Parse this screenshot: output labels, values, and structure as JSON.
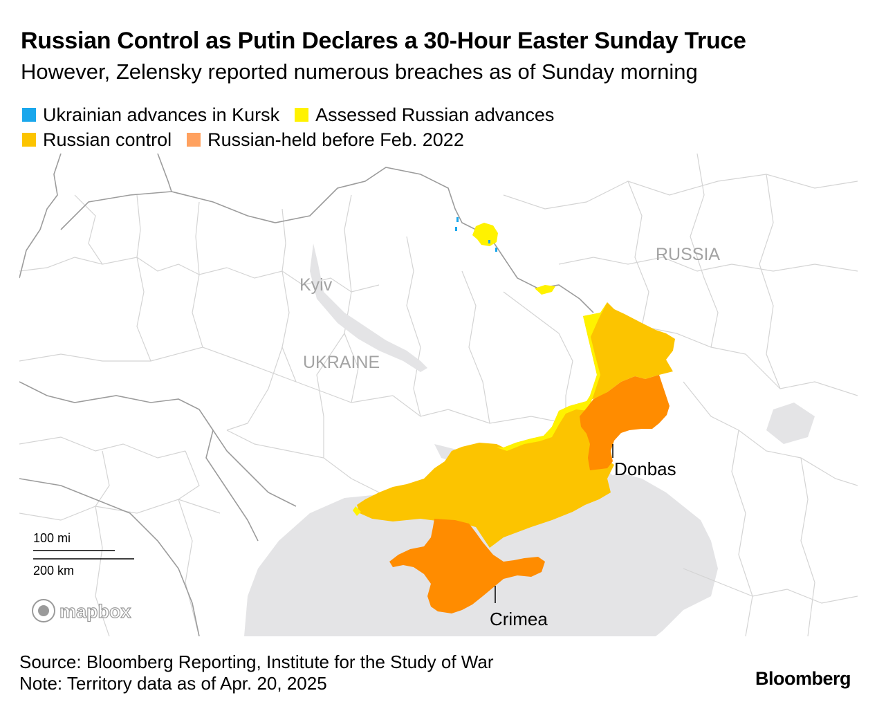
{
  "header": {
    "title": "Russian Control as Putin Declares a 30-Hour Easter Sunday Truce",
    "subtitle": "However, Zelensky reported numerous breaches as of Sunday morning"
  },
  "legend": {
    "items": [
      {
        "label": "Ukrainian advances in Kursk",
        "color": "#1aa7ec"
      },
      {
        "label": "Assessed Russian advances",
        "color": "#fff200"
      },
      {
        "label": "Russian control",
        "color": "#fcc400"
      },
      {
        "label": "Russian-held before Feb. 2022",
        "color": "#ffa15f"
      }
    ]
  },
  "map": {
    "labels": {
      "russia": "RUSSIA",
      "ukraine": "UKRAINE",
      "kyiv": "Kyiv",
      "donbas": "Donbas",
      "crimea": "Crimea"
    },
    "scale": {
      "miles": "100 mi",
      "km": "200 km"
    },
    "attribution": "mapbox",
    "colors": {
      "land": "#ffffff",
      "sea": "#e4e4e6",
      "borders": "#d2d2d2",
      "national_border": "#9a9a9a",
      "pre2022_fill": "#ff8c00"
    }
  },
  "footer": {
    "source": "Source: Bloomberg Reporting, Institute for the Study of War",
    "note": "Note: Territory data as of Apr. 20, 2025"
  },
  "brand": "Bloomberg"
}
